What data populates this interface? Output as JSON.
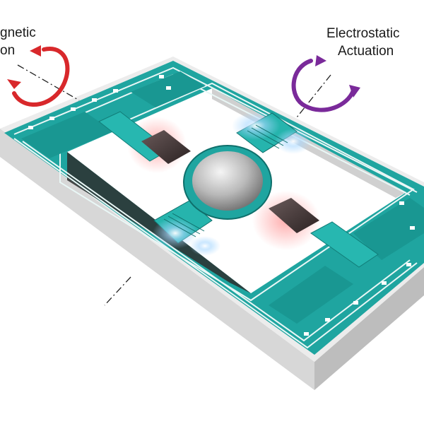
{
  "labels": {
    "magnetic_line1": "gnetic",
    "magnetic_line2": "on",
    "electrostatic_line1": "Electrostatic",
    "electrostatic_line2": "Actuation"
  },
  "colors": {
    "teal": "#1fa5a0",
    "teal_dark": "#137a76",
    "teal_light": "#3cc7c0",
    "substrate_top": "#f2f2f2",
    "substrate_side": "#cfcfcf",
    "magnetic_arrow": "#d8282b",
    "electrostatic_arrow": "#7a2a9a",
    "magnet_glow": "#e85a5a",
    "mirror": "#bfbfbf"
  },
  "icons": {
    "magnetic_arrow": "circular-rotation-arrow-icon",
    "electrostatic_arrow": "circular-rotation-arrow-icon"
  }
}
